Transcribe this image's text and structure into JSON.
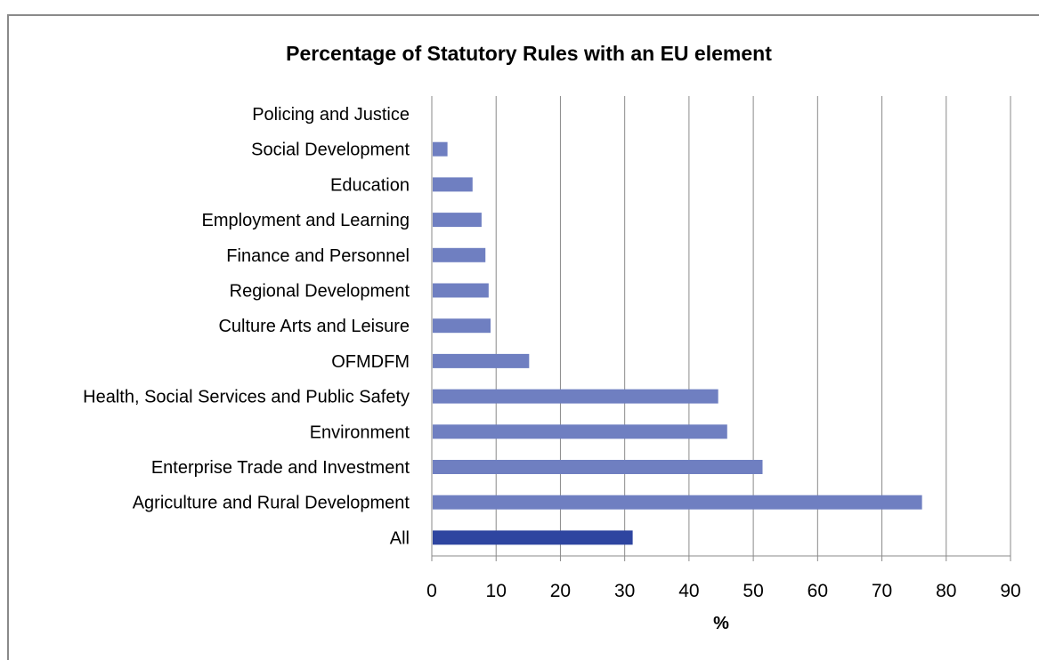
{
  "chart_data": {
    "type": "bar",
    "orientation": "horizontal",
    "title": "Percentage of Statutory Rules with an EU element",
    "xlabel": "%",
    "ylabel": "",
    "xlim": [
      0,
      90
    ],
    "xticks": [
      "0",
      "10",
      "20",
      "30",
      "40",
      "50",
      "60",
      "70",
      "80",
      "90"
    ],
    "grid": true,
    "legend": "none",
    "categories": [
      "Policing and Justice",
      "Social Development",
      "Education",
      "Employment and Learning",
      "Finance and Personnel",
      "Regional Development",
      "Culture Arts and Leisure",
      "OFMDFM",
      "Health, Social Services and Public Safety",
      "Environment",
      "Enterprise Trade and Investment",
      "Agriculture and Rural Development",
      "All"
    ],
    "values": [
      0,
      2.3,
      6.2,
      7.6,
      8.2,
      8.7,
      9.0,
      15.0,
      44.4,
      45.8,
      51.3,
      76.1,
      31.1
    ],
    "colors": {
      "bar": "#6f7fc1",
      "highlight": "#2e45a0",
      "grid": "#8a8a8a",
      "axis": "#8a8a8a",
      "border": "#8a8a8a"
    },
    "highlight_category": "All"
  }
}
